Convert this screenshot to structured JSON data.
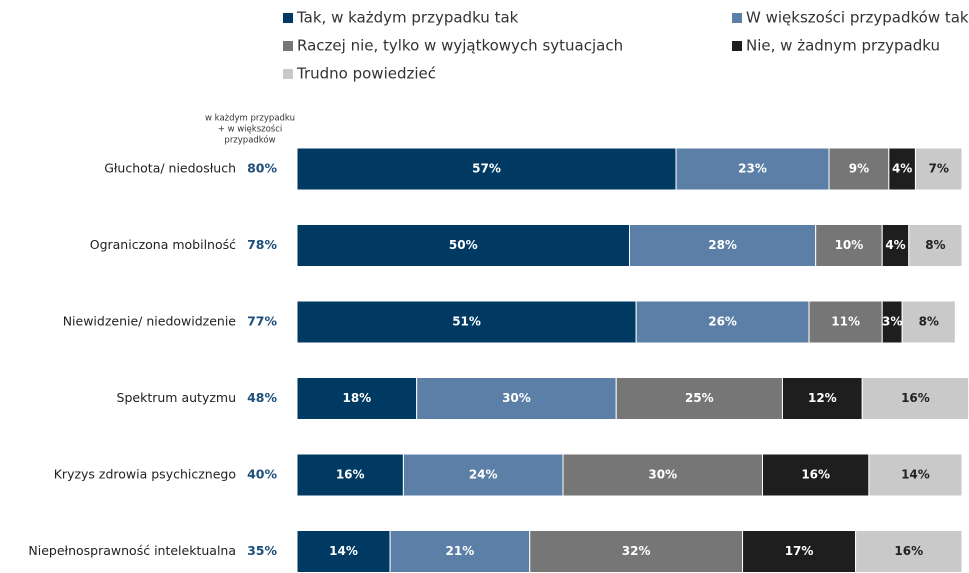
{
  "chart_data": {
    "type": "stacked-bar",
    "orientation": "horizontal",
    "categories": [
      "Głuchota/ niedosłuch",
      "Ograniczona mobilność",
      "Niewidzenie/ niedowidzenie",
      "Spektrum autyzmu",
      "Kryzys zdrowia psychicznego",
      "Niepełnosprawność intelektualna"
    ],
    "xlim": [
      0,
      100
    ],
    "legend": "top",
    "totals": {
      "title": [
        "w każdym przypadku",
        "+ w większości",
        "przypadków"
      ],
      "color": "#1d4f7c",
      "values": [
        80,
        78,
        77,
        48,
        40,
        35
      ],
      "value_labels": [
        "80%",
        "78%",
        "77%",
        "48%",
        "40%",
        "35%"
      ]
    },
    "series": [
      {
        "name": "Tak, w każdym przypadku tak",
        "color": "#003a63",
        "values": [
          57,
          50,
          51,
          18,
          16,
          14
        ],
        "value_labels": [
          "57%",
          "50%",
          "51%",
          "18%",
          "16%",
          "14%"
        ]
      },
      {
        "name": "W większości przypadków tak",
        "color": "#5b7fa6",
        "values": [
          23,
          28,
          26,
          30,
          24,
          21
        ],
        "value_labels": [
          "23%",
          "28%",
          "26%",
          "30%",
          "24%",
          "21%"
        ]
      },
      {
        "name": "Raczej nie, tylko w wyjątkowych sytuacjach",
        "color": "#767676",
        "values": [
          9,
          10,
          11,
          25,
          30,
          32
        ],
        "value_labels": [
          "9%",
          "10%",
          "11%",
          "25%",
          "30%",
          "32%"
        ]
      },
      {
        "name": "Nie, w żadnym przypadku",
        "color": "#1e1e1e",
        "values": [
          4,
          4,
          3,
          12,
          16,
          17
        ],
        "value_labels": [
          "4%",
          "4%",
          "3%",
          "12%",
          "16%",
          "17%"
        ]
      },
      {
        "name": "Trudno powiedzieć",
        "color": "#c9c9c9",
        "values": [
          7,
          8,
          8,
          16,
          14,
          16
        ],
        "value_labels": [
          "7%",
          "8%",
          "8%",
          "16%",
          "14%",
          "16%"
        ]
      }
    ]
  }
}
